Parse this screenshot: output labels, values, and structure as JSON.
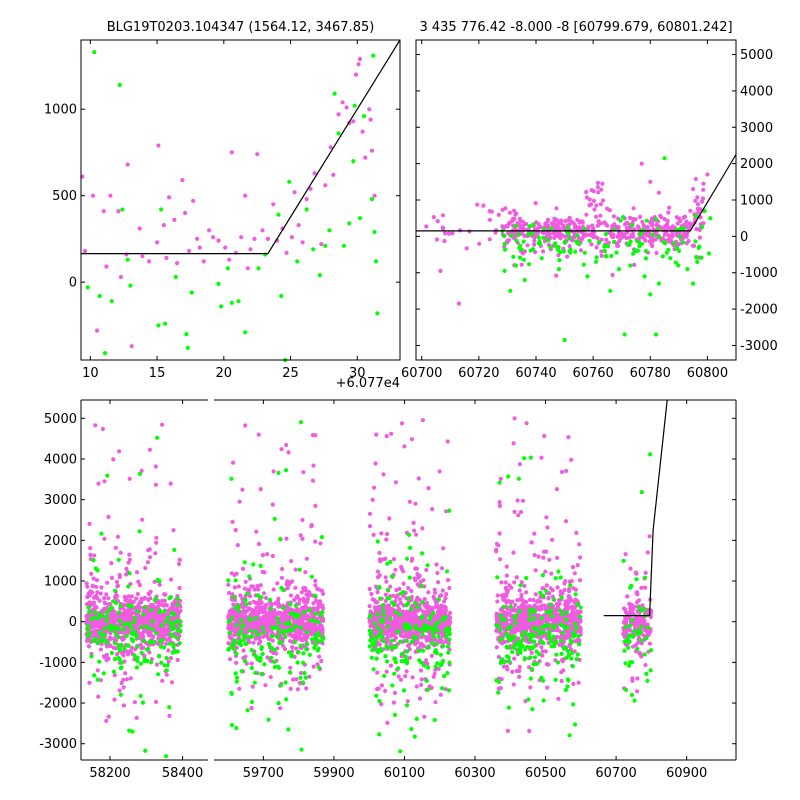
{
  "colors": {
    "magenta": "#f05be0",
    "green": "#00ff00",
    "line": "#000000"
  },
  "chart_data": [
    {
      "type": "scatter",
      "title": "BLG19T0203.104347 (1564.12, 3467.85)",
      "xlim": [
        9.3,
        33.2
      ],
      "ylim": [
        -450,
        1400
      ],
      "xticks": [
        10,
        15,
        20,
        25,
        30
      ],
      "yticks": [
        0,
        500,
        1000
      ],
      "x_offset_label": "+6.077e4",
      "model_line": [
        [
          9.3,
          165
        ],
        [
          23.3,
          165
        ],
        [
          33.2,
          1400
        ]
      ],
      "magenta_points": [
        [
          9.4,
          610
        ],
        [
          9.6,
          180
        ],
        [
          10.2,
          500
        ],
        [
          10.5,
          -280
        ],
        [
          11.0,
          410
        ],
        [
          11.2,
          90
        ],
        [
          11.5,
          500
        ],
        [
          12.1,
          410
        ],
        [
          12.3,
          30
        ],
        [
          12.7,
          160
        ],
        [
          12.8,
          680
        ],
        [
          13.1,
          -370
        ],
        [
          13.7,
          310
        ],
        [
          13.9,
          150
        ],
        [
          14.4,
          120
        ],
        [
          15.0,
          230
        ],
        [
          15.1,
          790
        ],
        [
          15.5,
          330
        ],
        [
          15.7,
          140
        ],
        [
          15.9,
          490
        ],
        [
          16.3,
          360
        ],
        [
          16.5,
          110
        ],
        [
          16.9,
          590
        ],
        [
          17.1,
          400
        ],
        [
          17.4,
          180
        ],
        [
          17.7,
          470
        ],
        [
          18.0,
          250
        ],
        [
          18.2,
          200
        ],
        [
          18.5,
          120
        ],
        [
          18.9,
          300
        ],
        [
          19.2,
          260
        ],
        [
          19.6,
          240
        ],
        [
          20.1,
          200
        ],
        [
          20.4,
          130
        ],
        [
          20.6,
          750
        ],
        [
          20.9,
          170
        ],
        [
          21.3,
          260
        ],
        [
          21.6,
          500
        ],
        [
          21.8,
          80
        ],
        [
          22.0,
          190
        ],
        [
          22.3,
          250
        ],
        [
          22.5,
          740
        ],
        [
          22.9,
          300
        ],
        [
          23.3,
          250
        ],
        [
          23.7,
          450
        ],
        [
          24.0,
          240
        ],
        [
          24.4,
          310
        ],
        [
          24.7,
          170
        ],
        [
          25.1,
          260
        ],
        [
          25.3,
          520
        ],
        [
          25.6,
          330
        ],
        [
          25.9,
          230
        ],
        [
          26.2,
          480
        ],
        [
          26.5,
          540
        ],
        [
          26.8,
          630
        ],
        [
          27.3,
          220
        ],
        [
          27.6,
          560
        ],
        [
          28.0,
          780
        ],
        [
          28.2,
          620
        ],
        [
          28.6,
          970
        ],
        [
          28.9,
          1040
        ],
        [
          29.2,
          1010
        ],
        [
          29.4,
          920
        ],
        [
          29.7,
          930
        ],
        [
          29.9,
          1200
        ],
        [
          30.1,
          1260
        ],
        [
          30.2,
          1290
        ],
        [
          30.4,
          870
        ],
        [
          30.6,
          720
        ],
        [
          30.9,
          1000
        ],
        [
          31.0,
          940
        ],
        [
          31.1,
          760
        ],
        [
          31.3,
          500
        ]
      ],
      "green_points": [
        [
          9.8,
          -30
        ],
        [
          10.3,
          1330
        ],
        [
          10.7,
          -80
        ],
        [
          11.1,
          -410
        ],
        [
          11.6,
          -110
        ],
        [
          12.2,
          1140
        ],
        [
          12.4,
          420
        ],
        [
          12.8,
          130
        ],
        [
          13.0,
          -20
        ],
        [
          15.1,
          -250
        ],
        [
          15.3,
          420
        ],
        [
          15.6,
          -240
        ],
        [
          16.4,
          30
        ],
        [
          17.2,
          -300
        ],
        [
          17.3,
          -380
        ],
        [
          17.6,
          -60
        ],
        [
          19.6,
          -10
        ],
        [
          19.8,
          -140
        ],
        [
          20.3,
          80
        ],
        [
          20.6,
          -120
        ],
        [
          21.1,
          -110
        ],
        [
          21.6,
          -290
        ],
        [
          22.6,
          80
        ],
        [
          23.1,
          160
        ],
        [
          24.1,
          390
        ],
        [
          24.3,
          -80
        ],
        [
          24.6,
          -450
        ],
        [
          24.9,
          580
        ],
        [
          25.5,
          120
        ],
        [
          26.2,
          420
        ],
        [
          26.7,
          190
        ],
        [
          27.2,
          40
        ],
        [
          27.6,
          210
        ],
        [
          27.9,
          300
        ],
        [
          28.3,
          1090
        ],
        [
          28.6,
          860
        ],
        [
          29.0,
          210
        ],
        [
          29.4,
          340
        ],
        [
          29.7,
          700
        ],
        [
          29.8,
          1020
        ],
        [
          30.2,
          370
        ],
        [
          30.5,
          960
        ],
        [
          31.1,
          480
        ],
        [
          31.2,
          1310
        ],
        [
          31.3,
          290
        ],
        [
          31.4,
          120
        ],
        [
          31.5,
          -180
        ]
      ]
    },
    {
      "type": "scatter",
      "title": "3 435 776.42 -8.000 -8 [60799.679, 60801.242]",
      "xlim": [
        60698,
        60810
      ],
      "ylim": [
        -3400,
        5400
      ],
      "xticks": [
        60700,
        60720,
        60740,
        60760,
        60780,
        60800
      ],
      "yticks": [
        -3000,
        -2000,
        -1000,
        0,
        1000,
        2000,
        3000,
        4000,
        5000
      ],
      "yaxis_side": "right",
      "model_line": [
        [
          60698,
          150
        ],
        [
          60794,
          150
        ],
        [
          60810,
          2250
        ]
      ],
      "magenta_seed": 41,
      "green_points": [
        [
          60729,
          -950
        ],
        [
          60731,
          -1500
        ],
        [
          60733,
          -800
        ],
        [
          60736,
          -1200
        ],
        [
          60739,
          -350
        ],
        [
          60742,
          -600
        ],
        [
          60745,
          -300
        ],
        [
          60748,
          -900
        ],
        [
          60750,
          -2850
        ],
        [
          60752,
          -450
        ],
        [
          60755,
          -200
        ],
        [
          60758,
          -1100
        ],
        [
          60761,
          -700
        ],
        [
          60764,
          -400
        ],
        [
          60766,
          -1500
        ],
        [
          60769,
          -900
        ],
        [
          60771,
          -2700
        ],
        [
          60773,
          -800
        ],
        [
          60775,
          -400
        ],
        [
          60778,
          -1100
        ],
        [
          60780,
          -1600
        ],
        [
          60782,
          -2700
        ],
        [
          60783,
          -1300
        ],
        [
          60785,
          2150
        ],
        [
          60787,
          -600
        ],
        [
          60790,
          -400
        ],
        [
          60793,
          -900
        ],
        [
          60795,
          -1300
        ],
        [
          60797,
          -300
        ],
        [
          60799,
          700
        ],
        [
          60801,
          500
        ]
      ]
    },
    {
      "type": "scatter",
      "title": "",
      "segments": [
        {
          "xlim": [
            58120,
            58470
          ],
          "xticks": [
            58200,
            58400
          ]
        },
        {
          "xlim": [
            59560,
            61040
          ],
          "xticks": [
            59700,
            59900,
            60100,
            60300,
            60500,
            60700,
            60900
          ]
        }
      ],
      "ylim": [
        -3400,
        5450
      ],
      "yticks": [
        -3000,
        -2000,
        -1000,
        0,
        1000,
        2000,
        3000,
        4000,
        5000
      ],
      "seasons": [
        [
          58135,
          58395
        ],
        [
          59600,
          59870
        ],
        [
          60000,
          60230
        ],
        [
          60360,
          60600
        ],
        [
          60720,
          60800
        ]
      ],
      "model_line": [
        [
          60665,
          150
        ],
        [
          60795,
          150
        ],
        [
          60805,
          2250
        ],
        [
          60845,
          5450
        ]
      ],
      "magenta_seed": 7,
      "green_seed": 13
    }
  ]
}
